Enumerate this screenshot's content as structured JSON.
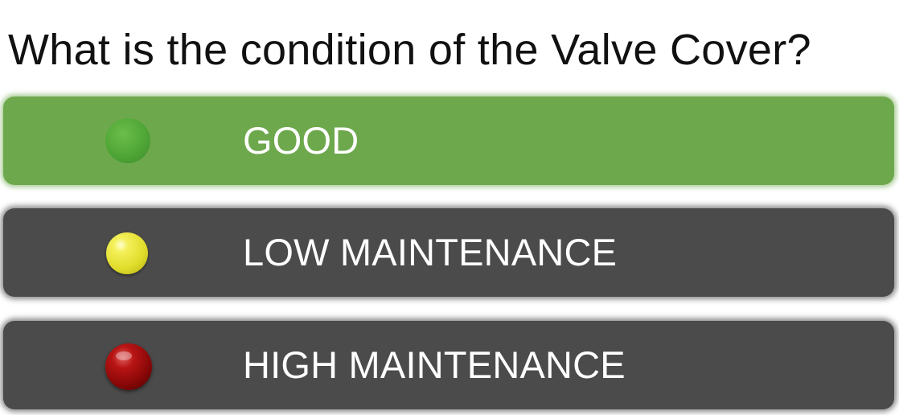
{
  "question": "What is the condition of the Valve Cover?",
  "options": [
    {
      "label": "GOOD",
      "color": "#6ea84d",
      "indicator_color": "#4fa636",
      "icon": "green-dot-icon",
      "selected": true
    },
    {
      "label": "LOW MAINTENANCE",
      "color": "#4b4b4b",
      "indicator_color": "#e0dc2a",
      "icon": "yellow-dot-icon",
      "selected": false
    },
    {
      "label": "HIGH MAINTENANCE",
      "color": "#4b4b4b",
      "indicator_color": "#8c0808",
      "icon": "red-dot-icon",
      "selected": false
    }
  ]
}
